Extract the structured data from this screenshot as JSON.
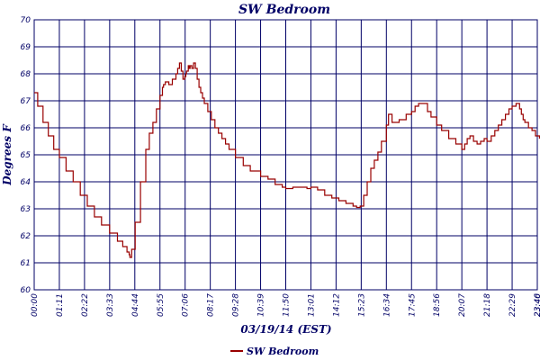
{
  "chart_data": {
    "type": "line",
    "title": "SW Bedroom",
    "xlabel": "03/19/14 (EST)",
    "ylabel": "Degrees F",
    "ylim": [
      60,
      70
    ],
    "yticks": [
      "60",
      "61",
      "62",
      "63",
      "64",
      "65",
      "66",
      "67",
      "68",
      "69",
      "70"
    ],
    "xlim": [
      0,
      1420
    ],
    "xtick_labels": [
      "00:00",
      "01:11",
      "02:22",
      "03:33",
      "04:44",
      "05:55",
      "07:06",
      "08:17",
      "09:28",
      "10:39",
      "11:50",
      "13:01",
      "14:12",
      "15:23",
      "16:34",
      "17:45",
      "18:56",
      "20:07",
      "21:18",
      "22:29",
      "23:40",
      "23:46"
    ],
    "xtick_minutes": [
      0,
      71,
      142,
      213,
      284,
      355,
      426,
      497,
      568,
      639,
      710,
      781,
      852,
      923,
      994,
      1065,
      1136,
      1207,
      1278,
      1349,
      1420,
      1426
    ],
    "grid": true,
    "legend_position": "bottom",
    "colors": {
      "series": "#990000",
      "grid": "#000066",
      "text": "#000066"
    },
    "series": [
      {
        "name": "SW Bedroom",
        "x": [
          0,
          10,
          25,
          40,
          55,
          71,
          90,
          110,
          130,
          150,
          170,
          190,
          213,
          235,
          250,
          262,
          268,
          270,
          275,
          285,
          300,
          315,
          325,
          335,
          345,
          355,
          362,
          365,
          370,
          375,
          380,
          390,
          400,
          405,
          410,
          415,
          420,
          425,
          428,
          430,
          435,
          438,
          440,
          445,
          450,
          455,
          460,
          465,
          470,
          475,
          480,
          490,
          500,
          510,
          520,
          530,
          540,
          550,
          568,
          590,
          610,
          639,
          660,
          680,
          700,
          710,
          730,
          750,
          770,
          781,
          800,
          820,
          840,
          860,
          880,
          900,
          905,
          910,
          915,
          920,
          923,
          930,
          940,
          950,
          960,
          970,
          980,
          994,
          1000,
          1010,
          1030,
          1050,
          1065,
          1075,
          1085,
          1100,
          1110,
          1120,
          1136,
          1150,
          1170,
          1190,
          1207,
          1215,
          1222,
          1230,
          1240,
          1250,
          1260,
          1270,
          1278,
          1290,
          1300,
          1310,
          1320,
          1330,
          1340,
          1349,
          1360,
          1370,
          1375,
          1380,
          1385,
          1395,
          1405,
          1415,
          1420,
          1426
        ],
        "y": [
          67.3,
          66.8,
          66.2,
          65.7,
          65.2,
          64.9,
          64.4,
          64.0,
          63.5,
          63.1,
          62.7,
          62.4,
          62.1,
          61.8,
          61.6,
          61.4,
          61.3,
          61.2,
          61.5,
          62.5,
          64.0,
          65.2,
          65.8,
          66.2,
          66.7,
          67.2,
          67.5,
          67.6,
          67.7,
          67.7,
          67.6,
          67.8,
          68.0,
          68.2,
          68.4,
          68.1,
          67.8,
          67.9,
          68.0,
          68.1,
          68.3,
          68.2,
          68.3,
          68.2,
          68.4,
          68.2,
          67.8,
          67.5,
          67.3,
          67.1,
          66.9,
          66.6,
          66.3,
          66.0,
          65.8,
          65.6,
          65.4,
          65.2,
          64.9,
          64.6,
          64.4,
          64.2,
          64.1,
          63.9,
          63.8,
          63.75,
          63.8,
          63.8,
          63.75,
          63.8,
          63.7,
          63.5,
          63.4,
          63.3,
          63.2,
          63.1,
          63.1,
          63.05,
          63.05,
          63.1,
          63.1,
          63.5,
          64.0,
          64.5,
          64.8,
          65.1,
          65.5,
          66.1,
          66.5,
          66.2,
          66.3,
          66.5,
          66.6,
          66.8,
          66.9,
          66.9,
          66.6,
          66.4,
          66.1,
          65.9,
          65.6,
          65.4,
          65.2,
          65.4,
          65.6,
          65.7,
          65.5,
          65.4,
          65.5,
          65.6,
          65.5,
          65.7,
          65.9,
          66.1,
          66.3,
          66.5,
          66.7,
          66.8,
          66.9,
          66.7,
          66.5,
          66.3,
          66.2,
          66.0,
          65.9,
          65.7,
          65.7,
          65.6
        ]
      }
    ]
  }
}
